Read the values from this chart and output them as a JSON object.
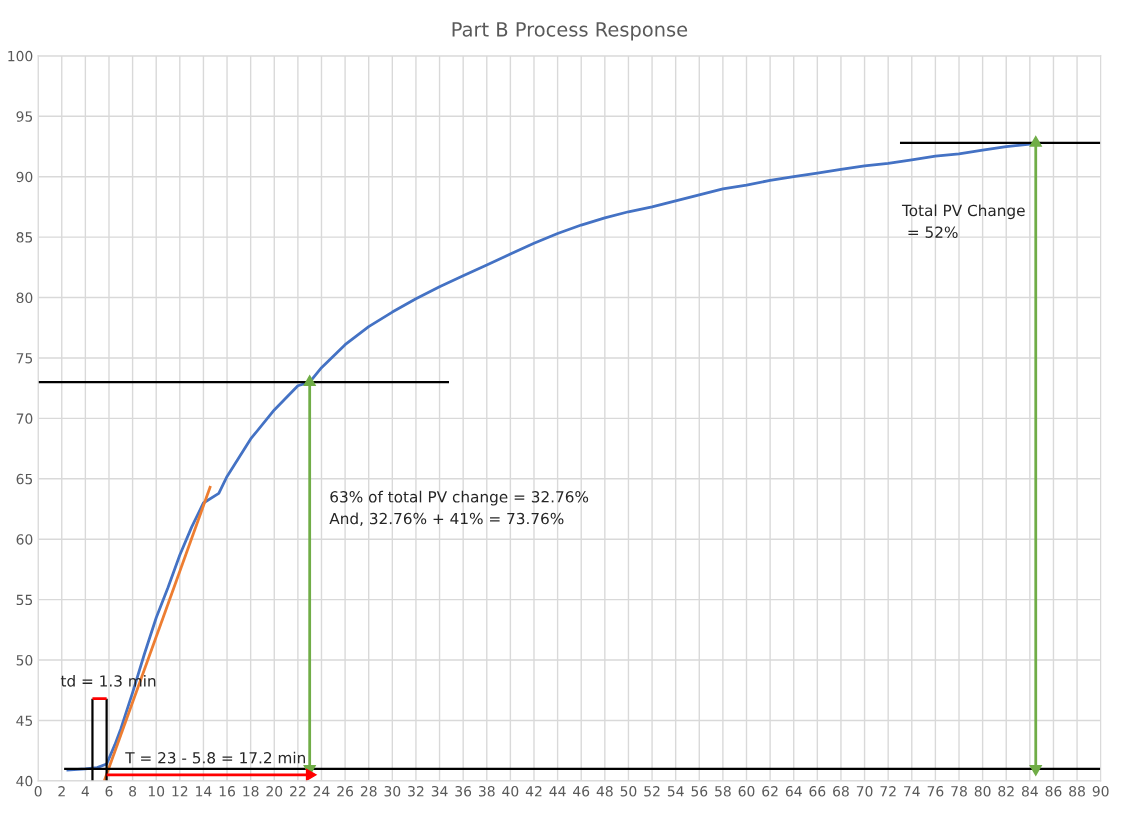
{
  "chart_data": {
    "type": "line",
    "title": "Part B Process Response",
    "xlim": [
      0,
      90
    ],
    "xticks": [
      0,
      2,
      4,
      6,
      8,
      10,
      12,
      14,
      16,
      18,
      20,
      22,
      24,
      26,
      28,
      30,
      32,
      34,
      36,
      38,
      40,
      42,
      44,
      46,
      48,
      50,
      52,
      54,
      56,
      58,
      60,
      62,
      64,
      66,
      68,
      70,
      72,
      74,
      76,
      78,
      80,
      82,
      84,
      86,
      88,
      90
    ],
    "ylim": [
      40,
      100
    ],
    "yticks": [
      40,
      45,
      50,
      55,
      60,
      65,
      70,
      75,
      80,
      85,
      90,
      95,
      100
    ],
    "grid": true,
    "series": [
      {
        "color": "#4472c4",
        "x": [
          2.4,
          4,
          5,
          5.8,
          6.5,
          7,
          8,
          9,
          10,
          11,
          12,
          13,
          14,
          15.3,
          16,
          18,
          20,
          22,
          23,
          24,
          26,
          28,
          30,
          32,
          34,
          36,
          38,
          40,
          42,
          44,
          46,
          48,
          50,
          52,
          54,
          56,
          58,
          60,
          62,
          64,
          66,
          68,
          70,
          72,
          74,
          76,
          78,
          80,
          82,
          84,
          84.4
        ],
        "values": [
          40.9,
          41.0,
          41.1,
          41.4,
          43,
          44.3,
          47.3,
          50.5,
          53.5,
          56,
          58.7,
          61,
          63,
          63.8,
          65.2,
          68.3,
          70.7,
          72.7,
          73.0,
          74.2,
          76.1,
          77.6,
          78.8,
          79.9,
          80.9,
          81.8,
          82.7,
          83.6,
          84.5,
          85.3,
          86.0,
          86.6,
          87.1,
          87.5,
          88.0,
          88.5,
          89.0,
          89.3,
          89.7,
          90.0,
          90.3,
          90.6,
          90.9,
          91.1,
          91.4,
          91.7,
          91.9,
          92.2,
          92.5,
          92.7,
          92.8
        ]
      },
      {
        "color": "#ed7d31",
        "x": [
          5.6,
          14.6
        ],
        "values": [
          40,
          64.4
        ]
      },
      {
        "color": "#000000",
        "x": [
          0,
          34.8
        ],
        "values": [
          73,
          73
        ]
      },
      {
        "color": "#000000",
        "x": [
          2.2,
          90
        ],
        "values": [
          41,
          41
        ]
      },
      {
        "color": "#000000",
        "x": [
          73,
          90
        ],
        "values": [
          92.8,
          92.8
        ]
      },
      {
        "color": "#000000",
        "x": [
          4.6,
          4.6
        ],
        "values": [
          40,
          46.8
        ]
      },
      {
        "color": "#000000",
        "x": [
          5.8,
          5.8
        ],
        "values": [
          40,
          46.8
        ]
      },
      {
        "color": "#ff0000",
        "x": [
          4.6,
          5.8
        ],
        "values": [
          46.8,
          46.8
        ]
      },
      {
        "color": "#70ad47",
        "x": [
          23,
          23
        ],
        "values": [
          41,
          73
        ],
        "marker": "triangle"
      },
      {
        "color": "#70ad47",
        "x": [
          84.5,
          84.5
        ],
        "values": [
          41,
          92.8
        ],
        "marker": "triangle"
      },
      {
        "color": "#ff0000",
        "x": [
          5.8,
          23
        ],
        "values": [
          40.5,
          40.5
        ],
        "marker": "triangle"
      }
    ],
    "annotations": [
      "td = 1.3 min",
      "T = 23 - 5.8 = 17.2 min",
      "63% of total PV change = 32.76%\nAnd, 32.76% + 41% = 73.76%",
      "Total PV Change\n = 52%"
    ]
  }
}
